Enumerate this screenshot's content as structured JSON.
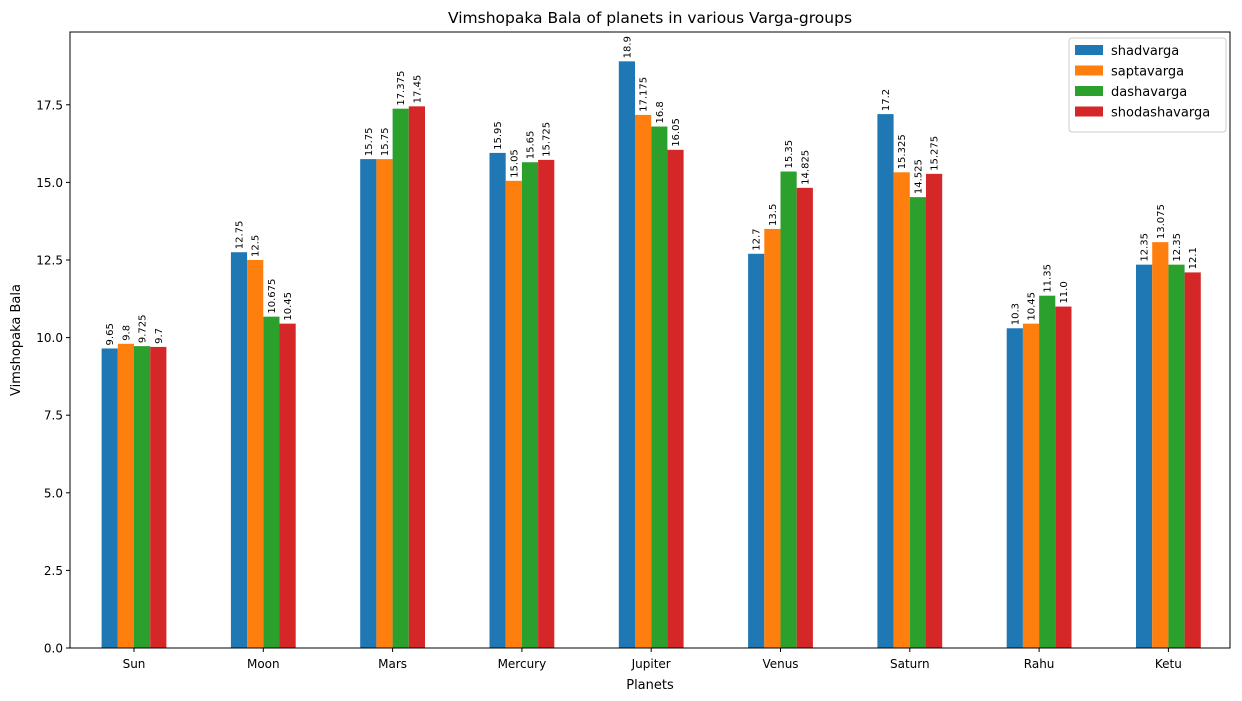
{
  "chart_data": {
    "type": "bar",
    "title": "Vimshopaka Bala of planets in various Varga-groups",
    "xlabel": "Planets",
    "ylabel": "Vimshopaka Bala",
    "categories": [
      "Sun",
      "Moon",
      "Mars",
      "Mercury",
      "Jupiter",
      "Venus",
      "Saturn",
      "Rahu",
      "Ketu"
    ],
    "ylim": [
      0,
      19.845
    ],
    "yticks": [
      0.0,
      2.5,
      5.0,
      7.5,
      10.0,
      12.5,
      15.0,
      17.5
    ],
    "ytick_labels": [
      "0.0",
      "2.5",
      "5.0",
      "7.5",
      "10.0",
      "12.5",
      "15.0",
      "17.5"
    ],
    "grid": false,
    "legend_position": "top-right",
    "series": [
      {
        "name": "shadvarga",
        "color": "#1f77b4",
        "values": [
          9.65,
          12.75,
          15.75,
          15.95,
          18.9,
          12.7,
          17.2,
          10.3,
          12.35
        ],
        "labels": [
          "9.65",
          "12.75",
          "15.75",
          "15.95",
          "18.9",
          "12.7",
          "17.2",
          "10.3",
          "12.35"
        ]
      },
      {
        "name": "saptavarga",
        "color": "#ff7f0e",
        "values": [
          9.8,
          12.5,
          15.75,
          15.05,
          17.175,
          13.5,
          15.325,
          10.45,
          13.075
        ],
        "labels": [
          "9.8",
          "12.5",
          "15.75",
          "15.05",
          "17.175",
          "13.5",
          "15.325",
          "10.45",
          "13.075"
        ]
      },
      {
        "name": "dashavarga",
        "color": "#2ca02c",
        "values": [
          9.725,
          10.675,
          17.375,
          15.65,
          16.8,
          15.35,
          14.525,
          11.35,
          12.35
        ],
        "labels": [
          "9.725",
          "10.675",
          "17.375",
          "15.65",
          "16.8",
          "15.35",
          "14.525",
          "11.35",
          "12.35"
        ]
      },
      {
        "name": "shodashavarga",
        "color": "#d62728",
        "values": [
          9.7,
          10.45,
          17.45,
          15.725,
          16.05,
          14.825,
          15.275,
          11.0,
          12.1
        ],
        "labels": [
          "9.7",
          "10.45",
          "17.45",
          "15.725",
          "16.05",
          "14.825",
          "15.275",
          "11.0",
          "12.1"
        ]
      }
    ]
  }
}
